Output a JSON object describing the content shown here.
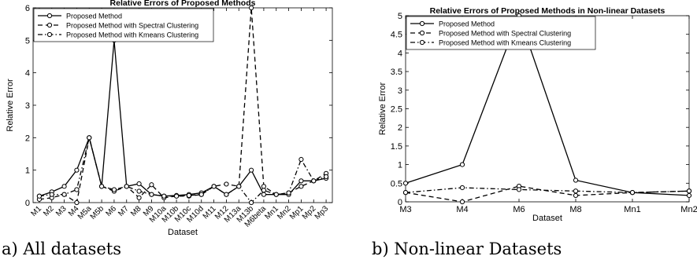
{
  "captions": {
    "a": "a) All datasets",
    "b": "b) Non-linear Datasets"
  },
  "chart_data": [
    {
      "type": "line",
      "title": "Relative Errors of Proposed Methods",
      "xlabel": "Dataset",
      "ylabel": "Relative Error",
      "ylim": [
        0,
        6
      ],
      "yticks": [
        "0",
        "1",
        "2",
        "3",
        "4",
        "5",
        "6"
      ],
      "grid": false,
      "legend_position": "top-left",
      "categories": [
        "M1",
        "M2",
        "M3",
        "M4",
        "M5a",
        "M5b",
        "M6",
        "M7",
        "M8",
        "M9",
        "M10a",
        "M10b",
        "M10c",
        "M10d",
        "M11",
        "M12",
        "M13a",
        "M13b",
        "M6beta",
        "Mn1",
        "Mn2",
        "Mp1",
        "Mp2",
        "Mp3"
      ],
      "series": [
        {
          "name": "Proposed Method",
          "line_style": "solid",
          "values": [
            0.2,
            0.33,
            0.5,
            1.0,
            2.0,
            0.5,
            5.0,
            0.5,
            0.58,
            0.25,
            0.2,
            0.22,
            0.25,
            0.3,
            0.5,
            0.25,
            0.5,
            1.0,
            0.25,
            0.25,
            0.25,
            0.67,
            0.67,
            0.75
          ]
        },
        {
          "name": "Proposed Method with Spectral Clustering",
          "line_style": "dashed",
          "values": [
            0.1,
            0.15,
            0.25,
            0.0,
            2.0,
            0.5,
            0.35,
            0.5,
            0.15,
            0.55,
            0.15,
            0.2,
            0.2,
            0.25,
            0.5,
            0.57,
            0.5,
            6.0,
            0.5,
            0.25,
            0.3,
            0.5,
            0.67,
            0.9
          ]
        },
        {
          "name": "Proposed Method with Kmeans Clustering",
          "line_style": "dash-dot",
          "values": [
            0.2,
            0.25,
            0.25,
            0.4,
            2.0,
            0.5,
            0.4,
            0.5,
            0.35,
            0.25,
            0.2,
            0.2,
            0.22,
            0.25,
            0.5,
            0.25,
            0.5,
            0.0,
            0.38,
            0.25,
            0.3,
            1.33,
            0.67,
            0.8
          ]
        }
      ]
    },
    {
      "type": "line",
      "title": "Relative Errors of Proposed Methods in Non-linear Datasets",
      "xlabel": "Dataset",
      "ylabel": "Relative Error",
      "ylim": [
        0,
        5
      ],
      "yticks": [
        "0",
        "0.5",
        "1",
        "1.5",
        "2",
        "2.5",
        "3",
        "3.5",
        "4",
        "4.5",
        "5"
      ],
      "grid": false,
      "legend_position": "top-left",
      "categories": [
        "M3",
        "M4",
        "M6",
        "M8",
        "Mn1",
        "Mn2"
      ],
      "series": [
        {
          "name": "Proposed Method",
          "line_style": "solid",
          "values": [
            0.5,
            1.0,
            5.0,
            0.58,
            0.25,
            0.17
          ]
        },
        {
          "name": "Proposed Method with Spectral Clustering",
          "line_style": "dashed",
          "values": [
            0.25,
            0.0,
            0.42,
            0.17,
            0.25,
            0.29
          ]
        },
        {
          "name": "Proposed Method with Kmeans Clustering",
          "line_style": "dash-dot",
          "values": [
            0.25,
            0.38,
            0.33,
            0.29,
            0.25,
            0.29
          ]
        }
      ]
    }
  ]
}
